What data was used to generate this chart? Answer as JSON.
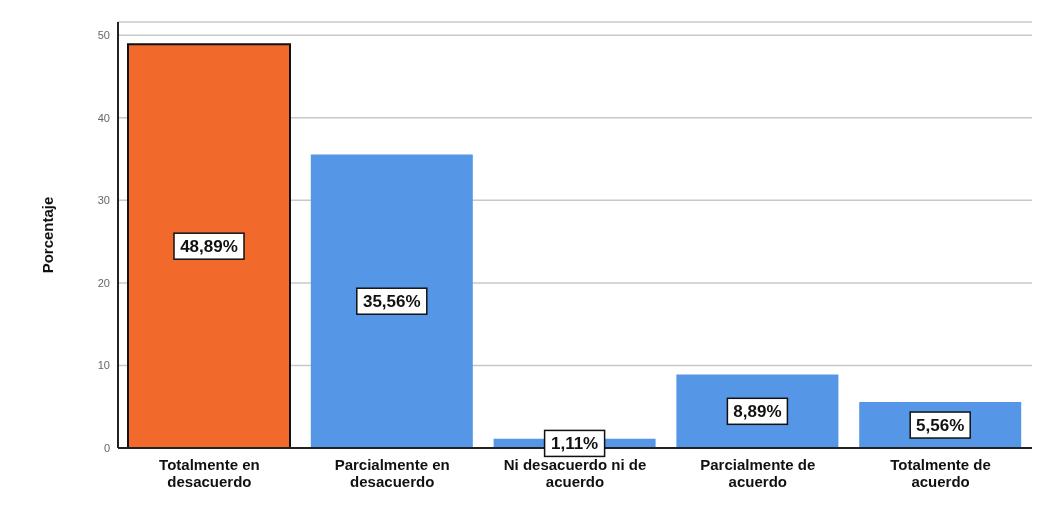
{
  "chart_data": {
    "type": "bar",
    "ylabel": "Porcentaje",
    "categories": [
      "Totalmente en desacuerdo",
      "Parcialmente en desacuerdo",
      "Ni desacuerdo ni de acuerdo",
      "Parcialmente de acuerdo",
      "Totalmente de acuerdo"
    ],
    "values": [
      48.89,
      35.56,
      1.11,
      8.89,
      5.56
    ],
    "colors": [
      "#f26a2b",
      "#5596e6",
      "#5596e6",
      "#5596e6",
      "#5596e6"
    ],
    "value_labels": [
      "48,89%",
      "35,56%",
      "1,11%",
      "8,89%",
      "5,56%"
    ],
    "ylim": [
      0,
      51.6
    ],
    "yticks": [
      0,
      10,
      20,
      30,
      40,
      50
    ],
    "grid": "y"
  }
}
